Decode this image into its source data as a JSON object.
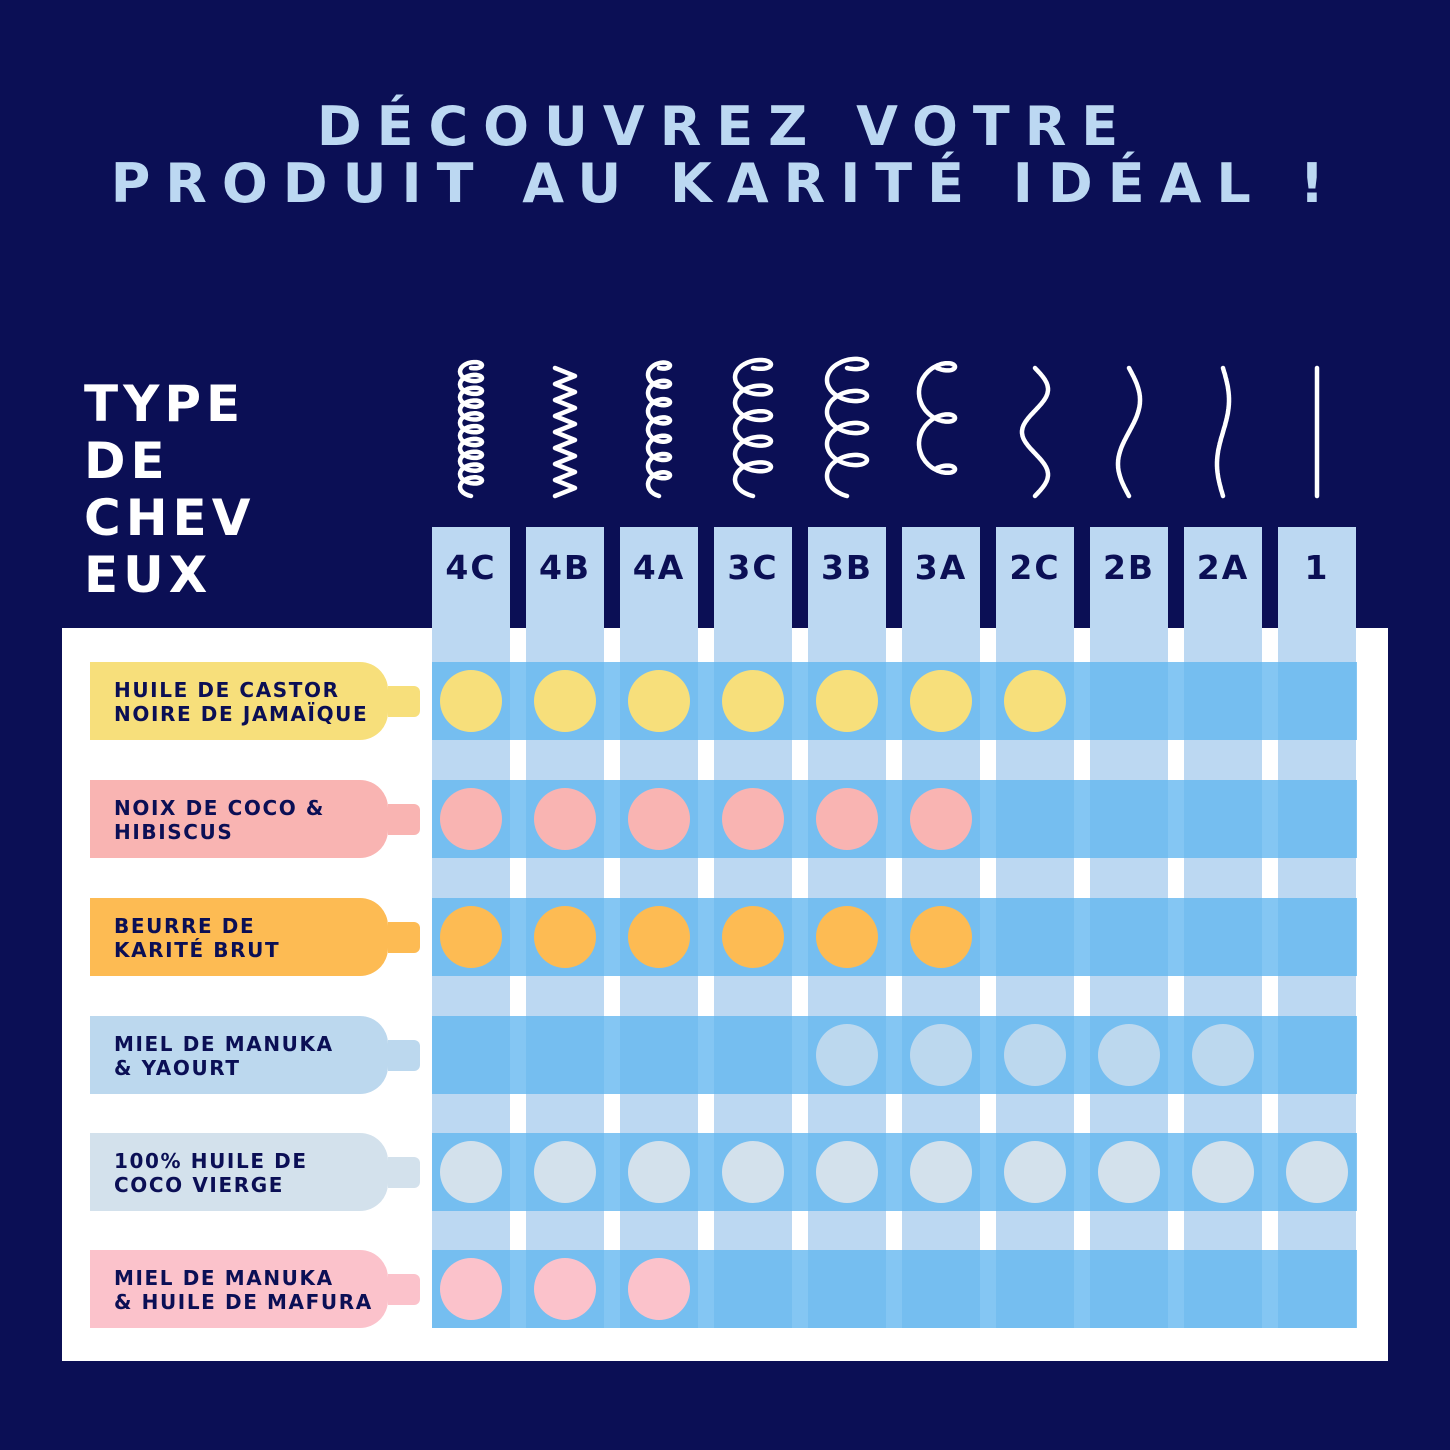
{
  "title": {
    "line1": "DÉCOUVREZ VOTRE",
    "line2": "PRODUIT AU KARITÉ IDÉAL !"
  },
  "hair_type_label": {
    "lines": [
      "TYPE",
      "DE",
      "CHEV",
      "EUX"
    ]
  },
  "colors": {
    "background": "#0b0f55",
    "column": "#bcd8f2",
    "band": "#62b6f0",
    "text_dark": "#0b0f55",
    "title": "#bcd8f2"
  },
  "hair_types": [
    {
      "label": "4C",
      "curl": "coil-tight"
    },
    {
      "label": "4B",
      "curl": "zigzag"
    },
    {
      "label": "4A",
      "curl": "coil"
    },
    {
      "label": "3C",
      "curl": "spiral-small"
    },
    {
      "label": "3B",
      "curl": "spiral"
    },
    {
      "label": "3A",
      "curl": "loose-loop"
    },
    {
      "label": "2C",
      "curl": "s-wave"
    },
    {
      "label": "2B",
      "curl": "wave"
    },
    {
      "label": "2A",
      "curl": "slight-wave"
    },
    {
      "label": "1",
      "curl": "straight"
    }
  ],
  "products": [
    {
      "lines": [
        "HUILE DE CASTOR",
        "NOIRE DE JAMAÏQUE"
      ],
      "color": "#f7df7b",
      "suitable": [
        "4C",
        "4B",
        "4A",
        "3C",
        "3B",
        "3A",
        "2C"
      ]
    },
    {
      "lines": [
        "NOIX DE COCO &",
        "HIBISCUS"
      ],
      "color": "#f9b4b2",
      "suitable": [
        "4C",
        "4B",
        "4A",
        "3C",
        "3B",
        "3A"
      ]
    },
    {
      "lines": [
        "BEURRE DE",
        "KARITÉ BRUT"
      ],
      "color": "#fdbb53",
      "suitable": [
        "4C",
        "4B",
        "4A",
        "3C",
        "3B",
        "3A"
      ]
    },
    {
      "lines": [
        "MIEL DE MANUKA",
        "& YAOURT"
      ],
      "color": "#bcd8ee",
      "suitable": [
        "3B",
        "3A",
        "2C",
        "2B",
        "2A"
      ]
    },
    {
      "lines": [
        "100% HUILE DE",
        "COCO VIERGE"
      ],
      "color": "#d3e1ec",
      "suitable": [
        "4C",
        "4B",
        "4A",
        "3C",
        "3B",
        "3A",
        "2C",
        "2B",
        "2A",
        "1"
      ]
    },
    {
      "lines": [
        "MIEL DE MANUKA",
        "& HUILE DE MAFURA"
      ],
      "color": "#fbc2cb",
      "suitable": [
        "4C",
        "4B",
        "4A"
      ]
    }
  ]
}
